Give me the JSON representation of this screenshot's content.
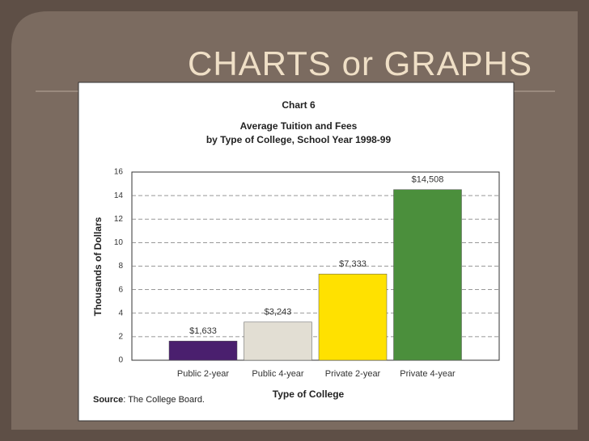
{
  "slide_title": "CHARTS or GRAPHS",
  "chart_data": {
    "type": "bar",
    "title": "Chart 6",
    "subtitle": [
      "Average Tuition and Fees",
      "by Type of College, School Year 1998-99"
    ],
    "x_label": "Type of College",
    "y_label": "Thousands of Dollars",
    "source": {
      "label": "Source",
      "text": ": The College Board."
    },
    "categories": [
      "Public 2-year",
      "Public 4-year",
      "Private 2-year",
      "Private 4-year"
    ],
    "values": [
      1.633,
      3.243,
      7.333,
      14.508
    ],
    "value_labels": [
      "$1,633",
      "$3,243",
      "$7,333",
      "$14,508"
    ],
    "colors": [
      "#4a1f6e",
      "#e2ded3",
      "#ffe100",
      "#4b8f3c"
    ],
    "ylim": [
      0,
      16
    ],
    "yticks": [
      0,
      2,
      4,
      6,
      8,
      10,
      12,
      14,
      16
    ],
    "grid": true
  }
}
